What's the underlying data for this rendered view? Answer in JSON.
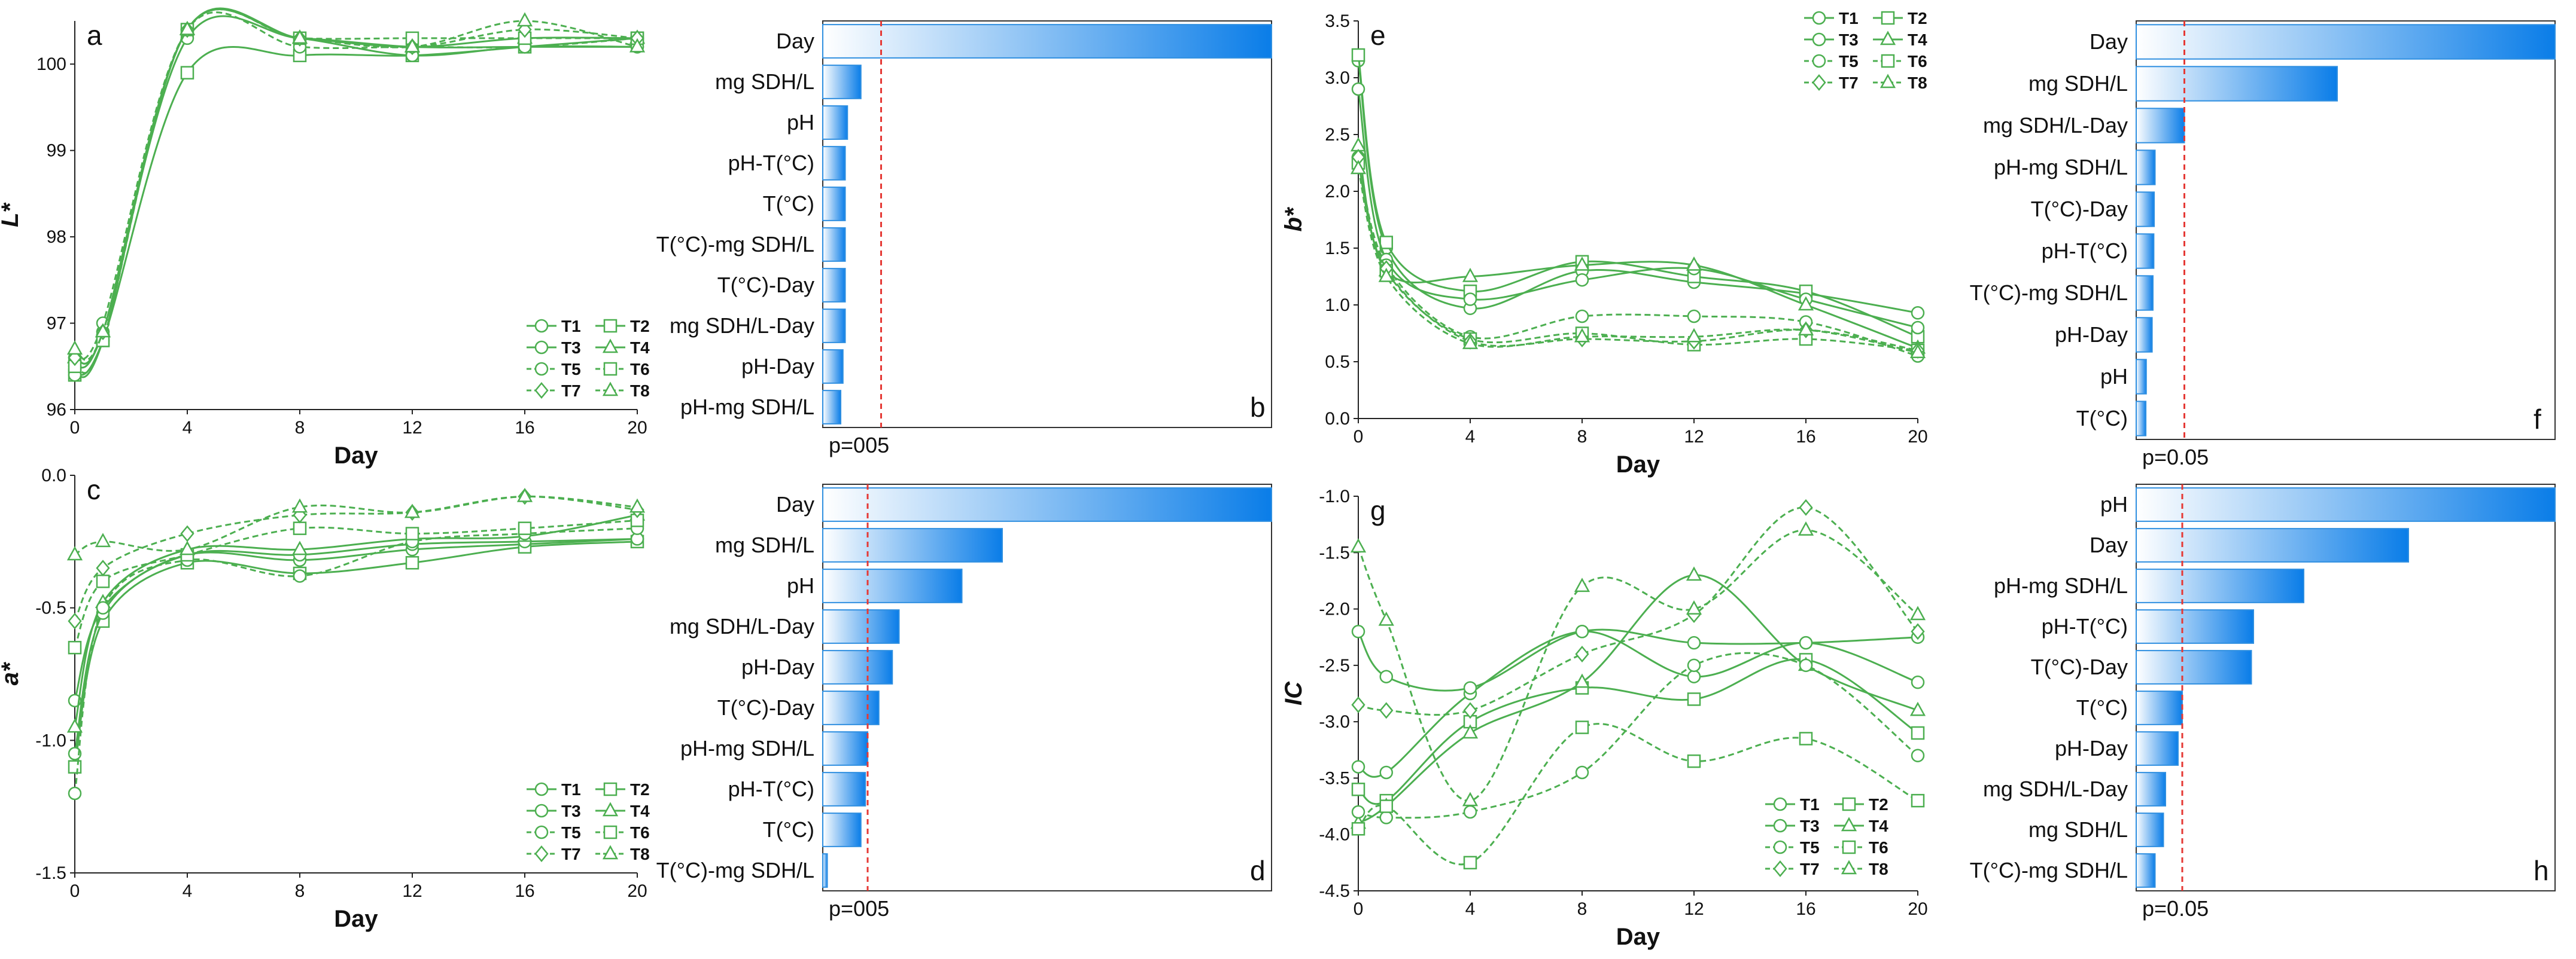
{
  "figure": {
    "series_color": "#4caf50",
    "bar_gradient": [
      "#ffffff",
      "#0a7de8"
    ],
    "bar_border": "#2f8fe0",
    "threshold_color": "#e53935"
  },
  "legend_names": [
    "T1",
    "T2",
    "T3",
    "T4",
    "T5",
    "T6",
    "T7",
    "T8"
  ],
  "chart_data": [
    {
      "id": "a",
      "type": "line",
      "panel_label": "a",
      "xlabel": "Day",
      "ylabel": "L*",
      "xlim": [
        0,
        20
      ],
      "ylim": [
        96,
        100.5
      ],
      "xticks": [
        "0",
        "4",
        "8",
        "12",
        "16",
        "20"
      ],
      "yticks": [
        "96",
        "97",
        "98",
        "99",
        "100"
      ],
      "x": [
        0,
        1,
        4,
        8,
        12,
        16,
        20
      ],
      "series": [
        {
          "name": "T1",
          "values": [
            96.5,
            96.9,
            100.3,
            100.3,
            100.2,
            100.2,
            100.2
          ]
        },
        {
          "name": "T2",
          "values": [
            96.4,
            96.8,
            99.9,
            100.1,
            100.1,
            100.2,
            100.3
          ]
        },
        {
          "name": "T3",
          "values": [
            96.4,
            96.8,
            100.4,
            100.3,
            100.1,
            100.2,
            100.2
          ]
        },
        {
          "name": "T4",
          "values": [
            96.6,
            96.9,
            100.4,
            100.3,
            100.2,
            100.3,
            100.3
          ]
        },
        {
          "name": "T5",
          "values": [
            96.6,
            97.0,
            100.4,
            100.2,
            100.2,
            100.2,
            100.3
          ]
        },
        {
          "name": "T6",
          "values": [
            96.5,
            96.8,
            100.4,
            100.3,
            100.3,
            100.3,
            100.3
          ]
        },
        {
          "name": "T7",
          "values": [
            96.6,
            96.9,
            100.4,
            100.3,
            100.2,
            100.4,
            100.3
          ]
        },
        {
          "name": "T8",
          "values": [
            96.7,
            96.9,
            100.4,
            100.3,
            100.2,
            100.5,
            100.2
          ]
        }
      ]
    },
    {
      "id": "b",
      "type": "bar",
      "panel_label": "b",
      "categories": [
        "Day",
        "mg SDH/L",
        "pH",
        "pH-T(°C)",
        "T(°C)",
        "T(°C)-mg SDH/L",
        "T(°C)-Day",
        "mg SDH/L-Day",
        "pH-Day",
        "pH-mg SDH/L"
      ],
      "values": [
        100,
        8.5,
        5.5,
        5,
        5,
        5,
        5,
        5,
        4.5,
        4
      ],
      "threshold": 13,
      "threshold_label": "p=005"
    },
    {
      "id": "c",
      "type": "line",
      "panel_label": "c",
      "xlabel": "Day",
      "ylabel": "a*",
      "xlim": [
        0,
        20
      ],
      "ylim": [
        -1.5,
        0
      ],
      "xticks": [
        "0",
        "4",
        "8",
        "12",
        "16",
        "20"
      ],
      "yticks": [
        "-1.5",
        "-1.0",
        "-0.5",
        "0.0"
      ],
      "x": [
        0,
        1,
        4,
        8,
        12,
        16,
        20
      ],
      "series": [
        {
          "name": "T1",
          "values": [
            -0.85,
            -0.5,
            -0.3,
            -0.32,
            -0.28,
            -0.26,
            -0.24
          ]
        },
        {
          "name": "T2",
          "values": [
            -1.1,
            -0.55,
            -0.33,
            -0.37,
            -0.33,
            -0.27,
            -0.25
          ]
        },
        {
          "name": "T3",
          "values": [
            -1.05,
            -0.52,
            -0.3,
            -0.3,
            -0.26,
            -0.25,
            -0.24
          ]
        },
        {
          "name": "T4",
          "values": [
            -0.95,
            -0.48,
            -0.28,
            -0.28,
            -0.24,
            -0.23,
            -0.15
          ]
        },
        {
          "name": "T5",
          "values": [
            -1.2,
            -0.5,
            -0.32,
            -0.38,
            -0.25,
            -0.22,
            -0.2
          ]
        },
        {
          "name": "T6",
          "values": [
            -0.65,
            -0.4,
            -0.3,
            -0.2,
            -0.22,
            -0.2,
            -0.17
          ]
        },
        {
          "name": "T7",
          "values": [
            -0.55,
            -0.35,
            -0.22,
            -0.15,
            -0.14,
            -0.08,
            -0.13
          ]
        },
        {
          "name": "T8",
          "values": [
            -0.3,
            -0.25,
            -0.28,
            -0.12,
            -0.14,
            -0.08,
            -0.12
          ]
        }
      ]
    },
    {
      "id": "d",
      "type": "bar",
      "panel_label": "d",
      "categories": [
        "Day",
        "mg SDH/L",
        "pH",
        "mg SDH/L-Day",
        "pH-Day",
        "T(°C)-Day",
        "pH-mg SDH/L",
        "pH-T(°C)",
        "T(°C)",
        "T(°C)-mg SDH/L"
      ],
      "values": [
        100,
        40,
        31,
        17,
        15.5,
        12.5,
        10,
        9.5,
        8.5,
        1
      ],
      "threshold": 10,
      "threshold_label": "p=005"
    },
    {
      "id": "e",
      "type": "line",
      "panel_label": "e",
      "xlabel": "Day",
      "ylabel": "b*",
      "xlim": [
        0,
        20
      ],
      "ylim": [
        0,
        3.5
      ],
      "xticks": [
        "0",
        "4",
        "8",
        "12",
        "16",
        "20"
      ],
      "yticks": [
        "0.0",
        "0.5",
        "1.0",
        "1.5",
        "2.0",
        "2.5",
        "3.0",
        "3.5"
      ],
      "x": [
        0,
        1,
        4,
        8,
        12,
        16,
        20
      ],
      "series": [
        {
          "name": "T1",
          "values": [
            3.15,
            1.5,
            0.97,
            1.3,
            1.2,
            1.1,
            0.93
          ]
        },
        {
          "name": "T2",
          "values": [
            3.2,
            1.55,
            1.12,
            1.38,
            1.25,
            1.12,
            0.72
          ]
        },
        {
          "name": "T3",
          "values": [
            2.9,
            1.4,
            1.05,
            1.22,
            1.32,
            1.05,
            0.8
          ]
        },
        {
          "name": "T4",
          "values": [
            2.4,
            1.3,
            1.25,
            1.35,
            1.35,
            1.0,
            0.62
          ]
        },
        {
          "name": "T5",
          "values": [
            2.3,
            1.35,
            0.72,
            0.9,
            0.9,
            0.85,
            0.55
          ]
        },
        {
          "name": "T6",
          "values": [
            2.25,
            1.3,
            0.7,
            0.75,
            0.65,
            0.7,
            0.6
          ]
        },
        {
          "name": "T7",
          "values": [
            2.3,
            1.32,
            0.68,
            0.7,
            0.68,
            0.78,
            0.6
          ]
        },
        {
          "name": "T8",
          "values": [
            2.2,
            1.25,
            0.66,
            0.72,
            0.72,
            0.78,
            0.58
          ]
        }
      ]
    },
    {
      "id": "f",
      "type": "bar",
      "panel_label": "f",
      "categories": [
        "Day",
        "mg SDH/L",
        "mg SDH/L-Day",
        "pH-mg SDH/L",
        "T(°C)-Day",
        "pH-T(°C)",
        "T(°C)-mg SDH/L",
        "pH-Day",
        "pH",
        "T(°C)"
      ],
      "values": [
        100,
        48,
        11.5,
        4.5,
        4.3,
        4.2,
        4.0,
        3.8,
        2.4,
        2.3
      ],
      "threshold": 11.5,
      "threshold_label": "p=0.05"
    },
    {
      "id": "g",
      "type": "line",
      "panel_label": "g",
      "xlabel": "Day",
      "ylabel": "IC",
      "xlim": [
        0,
        20
      ],
      "ylim": [
        -4.5,
        -1
      ],
      "xticks": [
        "0",
        "4",
        "8",
        "12",
        "16",
        "20"
      ],
      "yticks": [
        "-4.5",
        "-4.0",
        "-3.5",
        "-3.0",
        "-2.5",
        "-2.0",
        "-1.5",
        "-1.0"
      ],
      "x": [
        0,
        1,
        4,
        8,
        12,
        16,
        20
      ],
      "series": [
        {
          "name": "T1",
          "values": [
            -3.4,
            -3.45,
            -2.75,
            -2.2,
            -2.6,
            -2.3,
            -2.65
          ]
        },
        {
          "name": "T2",
          "values": [
            -3.6,
            -3.7,
            -3.0,
            -2.7,
            -2.8,
            -2.45,
            -3.1
          ]
        },
        {
          "name": "T3",
          "values": [
            -2.2,
            -2.6,
            -2.7,
            -2.2,
            -2.3,
            -2.3,
            -2.25
          ]
        },
        {
          "name": "T4",
          "values": [
            -3.9,
            -3.75,
            -3.1,
            -2.65,
            -1.7,
            -2.5,
            -2.9
          ]
        },
        {
          "name": "T5",
          "values": [
            -3.8,
            -3.85,
            -3.8,
            -3.45,
            -2.5,
            -2.5,
            -3.3
          ]
        },
        {
          "name": "T6",
          "values": [
            -3.95,
            -3.75,
            -4.25,
            -3.05,
            -3.35,
            -3.15,
            -3.7
          ]
        },
        {
          "name": "T7",
          "values": [
            -2.85,
            -2.9,
            -2.9,
            -2.4,
            -2.05,
            -1.1,
            -2.2
          ]
        },
        {
          "name": "T8",
          "values": [
            -1.45,
            -2.1,
            -3.7,
            -1.8,
            -2.0,
            -1.3,
            -2.05
          ]
        }
      ]
    },
    {
      "id": "h",
      "type": "bar",
      "panel_label": "h",
      "categories": [
        "pH",
        "Day",
        "pH-mg SDH/L",
        "pH-T(°C)",
        "T(°C)-Day",
        "T(°C)",
        "pH-Day",
        "mg SDH/L-Day",
        "mg SDH/L",
        "T(°C)-mg SDH/L"
      ],
      "values": [
        100,
        65,
        40,
        28,
        27.5,
        11,
        10,
        7,
        6.5,
        4.5
      ],
      "threshold": 11,
      "threshold_label": "p=0.05"
    }
  ]
}
